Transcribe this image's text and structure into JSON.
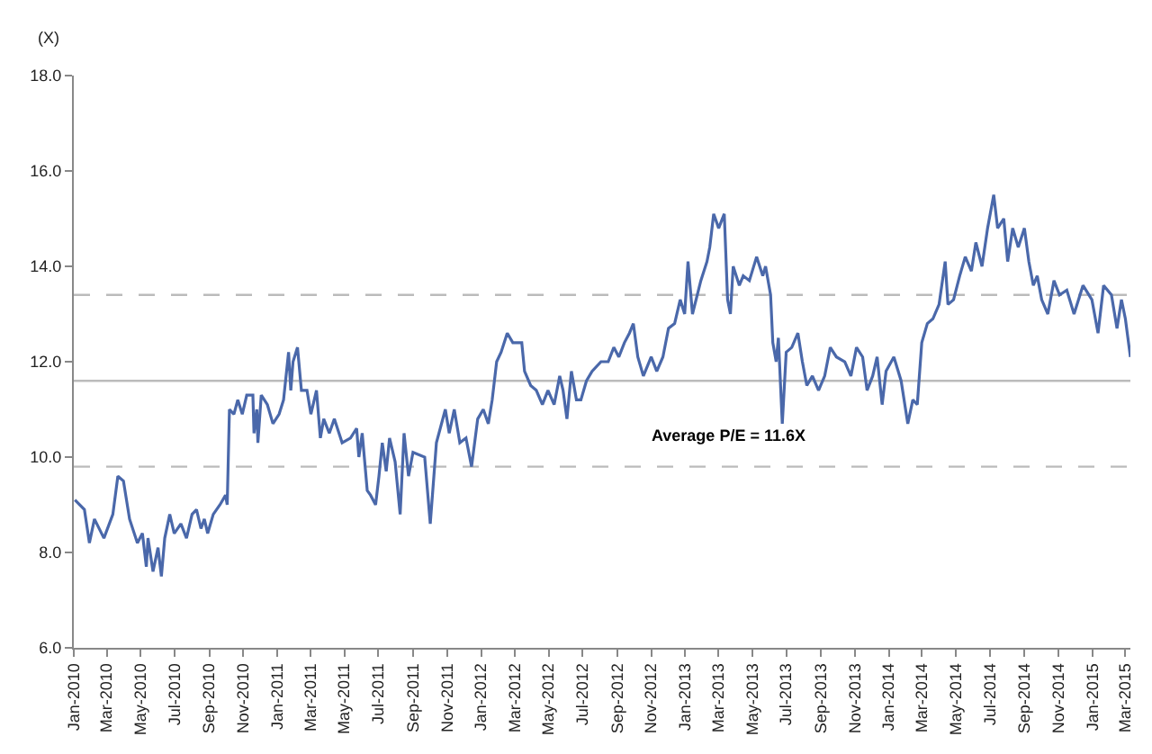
{
  "chart_data": {
    "type": "line",
    "ylabel": "(X)",
    "x": [
      "2010-01-03",
      "2010-01-20",
      "2010-01-29",
      "2010-02-07",
      "2010-02-24",
      "2010-03-12",
      "2010-03-21",
      "2010-03-31",
      "2010-04-11",
      "2010-04-25",
      "2010-05-04",
      "2010-05-11",
      "2010-05-14",
      "2010-05-23",
      "2010-06-01",
      "2010-06-07",
      "2010-06-13",
      "2010-06-22",
      "2010-06-30",
      "2010-07-12",
      "2010-07-22",
      "2010-08-01",
      "2010-08-09",
      "2010-08-17",
      "2010-08-23",
      "2010-08-29",
      "2010-09-08",
      "2010-09-20",
      "2010-09-30",
      "2010-10-03",
      "2010-10-07",
      "2010-10-15",
      "2010-10-22",
      "2010-10-30",
      "2010-11-07",
      "2010-11-18",
      "2010-11-20",
      "2010-11-25",
      "2010-11-27",
      "2010-12-03",
      "2010-12-14",
      "2010-12-24",
      "2011-01-04",
      "2011-01-12",
      "2011-01-21",
      "2011-01-25",
      "2011-01-29",
      "2011-02-06",
      "2011-02-13",
      "2011-02-23",
      "2011-03-02",
      "2011-03-12",
      "2011-03-19",
      "2011-03-25",
      "2011-04-04",
      "2011-04-13",
      "2011-04-27",
      "2011-05-12",
      "2011-05-23",
      "2011-05-27",
      "2011-06-02",
      "2011-06-11",
      "2011-06-17",
      "2011-06-26",
      "2011-07-02",
      "2011-07-08",
      "2011-07-15",
      "2011-07-21",
      "2011-07-31",
      "2011-08-09",
      "2011-08-16",
      "2011-08-24",
      "2011-09-01",
      "2011-09-22",
      "2011-10-02",
      "2011-10-13",
      "2011-10-29",
      "2011-11-05",
      "2011-11-14",
      "2011-11-24",
      "2011-12-05",
      "2011-12-15",
      "2011-12-26",
      "2012-01-05",
      "2012-01-14",
      "2012-01-21",
      "2012-01-29",
      "2012-02-06",
      "2012-02-17",
      "2012-02-27",
      "2012-03-14",
      "2012-03-19",
      "2012-03-30",
      "2012-04-09",
      "2012-04-20",
      "2012-04-30",
      "2012-05-11",
      "2012-05-21",
      "2012-05-27",
      "2012-06-03",
      "2012-06-11",
      "2012-06-20",
      "2012-06-28",
      "2012-07-08",
      "2012-07-18",
      "2012-08-03",
      "2012-08-16",
      "2012-08-26",
      "2012-09-04",
      "2012-09-14",
      "2012-09-23",
      "2012-09-30",
      "2012-10-08",
      "2012-10-18",
      "2012-11-01",
      "2012-11-11",
      "2012-11-22",
      "2012-12-02",
      "2012-12-13",
      "2012-12-23",
      "2012-12-31",
      "2013-01-06",
      "2013-01-14",
      "2013-01-29",
      "2013-02-09",
      "2013-02-14",
      "2013-02-21",
      "2013-03-02",
      "2013-03-12",
      "2013-03-18",
      "2013-03-23",
      "2013-03-28",
      "2013-04-08",
      "2013-04-15",
      "2013-04-26",
      "2013-05-09",
      "2013-05-20",
      "2013-05-25",
      "2013-06-03",
      "2013-06-07",
      "2013-06-13",
      "2013-06-17",
      "2013-06-24",
      "2013-07-01",
      "2013-07-11",
      "2013-07-22",
      "2013-07-30",
      "2013-08-07",
      "2013-08-17",
      "2013-08-28",
      "2013-09-08",
      "2013-09-18",
      "2013-09-29",
      "2013-10-14",
      "2013-10-25",
      "2013-11-04",
      "2013-11-15",
      "2013-11-23",
      "2013-12-03",
      "2013-12-11",
      "2013-12-20",
      "2013-12-27",
      "2014-01-10",
      "2014-01-23",
      "2014-02-04",
      "2014-02-13",
      "2014-02-21",
      "2014-03-01",
      "2014-03-11",
      "2014-03-21",
      "2014-04-01",
      "2014-04-12",
      "2014-04-17",
      "2014-04-27",
      "2014-05-08",
      "2014-05-18",
      "2014-05-29",
      "2014-06-06",
      "2014-06-17",
      "2014-06-27",
      "2014-07-08",
      "2014-07-15",
      "2014-07-26",
      "2014-08-02",
      "2014-08-11",
      "2014-08-21",
      "2014-09-01",
      "2014-09-09",
      "2014-09-17",
      "2014-09-24",
      "2014-10-02",
      "2014-10-13",
      "2014-10-24",
      "2014-11-03",
      "2014-11-16",
      "2014-11-29",
      "2014-12-15",
      "2014-12-31",
      "2015-01-11",
      "2015-01-21",
      "2015-02-04",
      "2015-02-14",
      "2015-02-22",
      "2015-03-01",
      "2015-03-10"
    ],
    "series": [
      {
        "color": "#4a68aa",
        "values": [
          9.1,
          8.9,
          8.2,
          8.7,
          8.3,
          8.8,
          9.6,
          9.5,
          8.7,
          8.2,
          8.4,
          7.7,
          8.3,
          7.6,
          8.1,
          7.5,
          8.3,
          8.8,
          8.4,
          8.6,
          8.3,
          8.8,
          8.9,
          8.5,
          8.7,
          8.4,
          8.8,
          9.0,
          9.2,
          9.0,
          11.0,
          10.9,
          11.2,
          10.9,
          11.3,
          11.3,
          10.5,
          11.0,
          10.3,
          11.3,
          11.1,
          10.7,
          10.9,
          11.2,
          12.2,
          11.4,
          12.0,
          12.3,
          11.4,
          11.4,
          10.9,
          11.4,
          10.4,
          10.8,
          10.5,
          10.8,
          10.3,
          10.4,
          10.6,
          10.0,
          10.5,
          9.3,
          9.2,
          9.0,
          9.6,
          10.3,
          9.7,
          10.4,
          9.9,
          8.8,
          10.5,
          9.6,
          10.1,
          10.0,
          8.6,
          10.3,
          11.0,
          10.5,
          11.0,
          10.3,
          10.4,
          9.8,
          10.8,
          11.0,
          10.7,
          11.2,
          12.0,
          12.2,
          12.6,
          12.4,
          12.4,
          11.8,
          11.5,
          11.4,
          11.1,
          11.4,
          11.1,
          11.7,
          11.4,
          10.8,
          11.8,
          11.2,
          11.2,
          11.6,
          11.8,
          12.0,
          12.0,
          12.3,
          12.1,
          12.4,
          12.6,
          12.8,
          12.1,
          11.7,
          12.1,
          11.8,
          12.1,
          12.7,
          12.8,
          13.3,
          13.0,
          14.1,
          13.0,
          13.7,
          14.1,
          14.4,
          15.1,
          14.8,
          15.1,
          13.3,
          13.0,
          14.0,
          13.6,
          13.8,
          13.7,
          14.2,
          13.8,
          14.0,
          13.4,
          12.4,
          12.0,
          12.5,
          10.7,
          12.2,
          12.3,
          12.6,
          12.0,
          11.5,
          11.7,
          11.4,
          11.7,
          12.3,
          12.1,
          12.0,
          11.7,
          12.3,
          12.1,
          11.4,
          11.7,
          12.1,
          11.1,
          11.8,
          12.1,
          11.6,
          10.7,
          11.2,
          11.1,
          12.4,
          12.8,
          12.9,
          13.2,
          14.1,
          13.2,
          13.3,
          13.8,
          14.2,
          13.9,
          14.5,
          14.0,
          14.8,
          15.5,
          14.8,
          15.0,
          14.1,
          14.8,
          14.4,
          14.8,
          14.1,
          13.6,
          13.8,
          13.3,
          13.0,
          13.7,
          13.4,
          13.5,
          13.0,
          13.6,
          13.3,
          12.6,
          13.6,
          13.4,
          12.7,
          13.3,
          12.9,
          12.1
        ]
      }
    ],
    "xlim": [
      "2010-01-01",
      "2015-03-10"
    ],
    "xticks": [
      {
        "value": "2010-01-01",
        "label": "Jan-2010"
      },
      {
        "value": "2010-03-01",
        "label": "Mar-2010"
      },
      {
        "value": "2010-05-01",
        "label": "May-2010"
      },
      {
        "value": "2010-07-01",
        "label": "Jul-2010"
      },
      {
        "value": "2010-09-01",
        "label": "Sep-2010"
      },
      {
        "value": "2010-11-01",
        "label": "Nov-2010"
      },
      {
        "value": "2011-01-01",
        "label": "Jan-2011"
      },
      {
        "value": "2011-03-01",
        "label": "Mar-2011"
      },
      {
        "value": "2011-05-01",
        "label": "May-2011"
      },
      {
        "value": "2011-07-01",
        "label": "Jul-2011"
      },
      {
        "value": "2011-09-01",
        "label": "Sep-2011"
      },
      {
        "value": "2011-11-01",
        "label": "Nov-2011"
      },
      {
        "value": "2012-01-01",
        "label": "Jan-2012"
      },
      {
        "value": "2012-03-01",
        "label": "Mar-2012"
      },
      {
        "value": "2012-05-01",
        "label": "May-2012"
      },
      {
        "value": "2012-07-01",
        "label": "Jul-2012"
      },
      {
        "value": "2012-09-01",
        "label": "Sep-2012"
      },
      {
        "value": "2012-11-01",
        "label": "Nov-2012"
      },
      {
        "value": "2013-01-01",
        "label": "Jan-2013"
      },
      {
        "value": "2013-03-01",
        "label": "Mar-2013"
      },
      {
        "value": "2013-05-01",
        "label": "May-2013"
      },
      {
        "value": "2013-07-01",
        "label": "Jul-2013"
      },
      {
        "value": "2013-09-01",
        "label": "Sep-2013"
      },
      {
        "value": "2013-11-01",
        "label": "Nov-2013"
      },
      {
        "value": "2014-01-01",
        "label": "Jan-2014"
      },
      {
        "value": "2014-03-01",
        "label": "Mar-2014"
      },
      {
        "value": "2014-05-01",
        "label": "May-2014"
      },
      {
        "value": "2014-07-01",
        "label": "Jul-2014"
      },
      {
        "value": "2014-09-01",
        "label": "Sep-2014"
      },
      {
        "value": "2014-11-01",
        "label": "Nov-2014"
      },
      {
        "value": "2015-01-01",
        "label": "Jan-2015"
      },
      {
        "value": "2015-03-01",
        "label": "Mar-2015"
      }
    ],
    "ylim": [
      6.0,
      18.0
    ],
    "yticks": [
      {
        "value": 6,
        "label": "6.0"
      },
      {
        "value": 8,
        "label": "8.0"
      },
      {
        "value": 10,
        "label": "10.0"
      },
      {
        "value": 12,
        "label": "12.0"
      },
      {
        "value": 14,
        "label": "14.0"
      },
      {
        "value": 16,
        "label": "16.0"
      },
      {
        "value": 18,
        "label": "18.0"
      }
    ],
    "ref_lines": [
      {
        "axis": "y",
        "value": 11.6,
        "label": "Average P/E = 11.6X",
        "color": "#bbbbbb",
        "line_style": "solid"
      },
      {
        "axis": "y",
        "value": 13.4,
        "color": "#bbbbbb",
        "line_style": "dashed"
      },
      {
        "axis": "y",
        "value": 9.8,
        "color": "#bbbbbb",
        "line_style": "dashed"
      }
    ],
    "grid": false,
    "legend": false,
    "marker": "none",
    "line_style": "solid"
  }
}
